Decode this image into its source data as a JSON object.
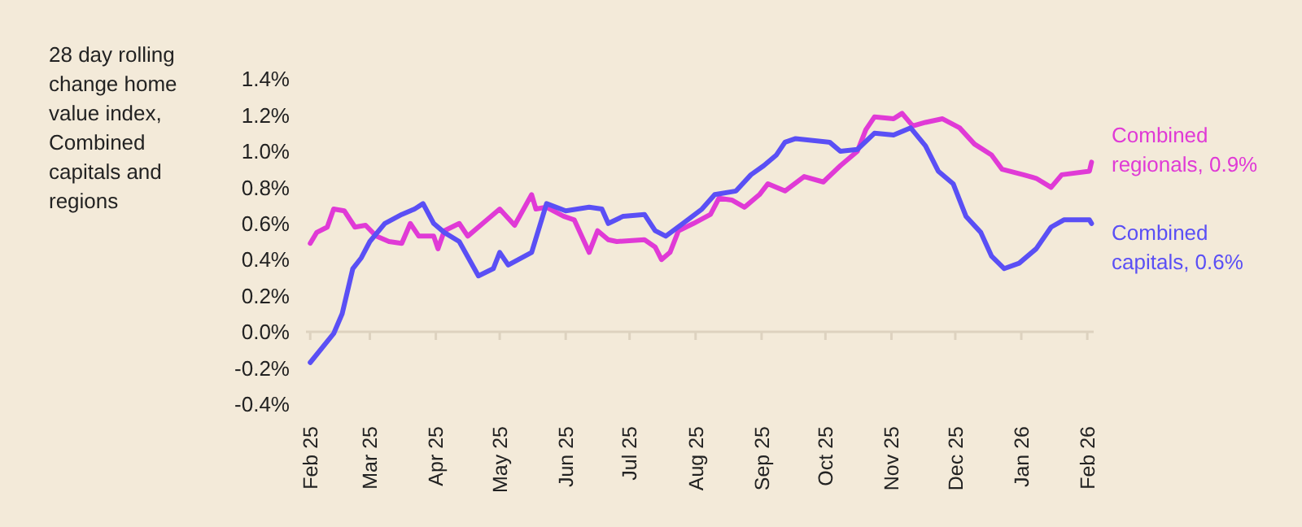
{
  "chart_data": {
    "type": "line",
    "title": "28 day rolling change home value index, Combined capitals and regions",
    "xlim": [
      "2025-01-30",
      "2026-02-04"
    ],
    "ylim": [
      -0.4,
      1.4
    ],
    "xticks": [
      {
        "value": "2025-02-01",
        "label": "Feb 25"
      },
      {
        "value": "2025-03-01",
        "label": "Mar 25"
      },
      {
        "value": "2025-04-01",
        "label": "Apr 25"
      },
      {
        "value": "2025-05-01",
        "label": "May 25"
      },
      {
        "value": "2025-06-01",
        "label": "Jun 25"
      },
      {
        "value": "2025-07-01",
        "label": "Jul 25"
      },
      {
        "value": "2025-08-01",
        "label": "Aug 25"
      },
      {
        "value": "2025-09-01",
        "label": "Sep 25"
      },
      {
        "value": "2025-10-01",
        "label": "Oct 25"
      },
      {
        "value": "2025-11-01",
        "label": "Nov 25"
      },
      {
        "value": "2025-12-01",
        "label": "Dec 25"
      },
      {
        "value": "2026-01-01",
        "label": "Jan 26"
      },
      {
        "value": "2026-02-01",
        "label": "Feb 26"
      }
    ],
    "yticks": [
      {
        "value": 1.4,
        "label": "1.4%"
      },
      {
        "value": 1.2,
        "label": "1.2%"
      },
      {
        "value": 1.0,
        "label": "1.0%"
      },
      {
        "value": 0.8,
        "label": "0.8%"
      },
      {
        "value": 0.6,
        "label": "0.6%"
      },
      {
        "value": 0.4,
        "label": "0.4%"
      },
      {
        "value": 0.2,
        "label": "0.2%"
      },
      {
        "value": 0.0,
        "label": "0.0%"
      },
      {
        "value": -0.2,
        "label": "-0.2%"
      },
      {
        "value": -0.4,
        "label": "-0.4%"
      }
    ],
    "marker": "none",
    "line_style": "solid",
    "series": [
      {
        "name": "Combined regionals, 0.9%",
        "color": "#e03ad6",
        "x": [
          "2025-02-01",
          "2025-02-04",
          "2025-02-09",
          "2025-02-12",
          "2025-02-17",
          "2025-02-22",
          "2025-02-27",
          "2025-03-04",
          "2025-03-10",
          "2025-03-16",
          "2025-03-20",
          "2025-03-24",
          "2025-03-31",
          "2025-04-02",
          "2025-04-05",
          "2025-04-12",
          "2025-04-16",
          "2025-04-23",
          "2025-05-01",
          "2025-05-08",
          "2025-05-16",
          "2025-05-18",
          "2025-05-23",
          "2025-05-31",
          "2025-06-05",
          "2025-06-12",
          "2025-06-16",
          "2025-06-21",
          "2025-06-25",
          "2025-07-08",
          "2025-07-13",
          "2025-07-16",
          "2025-07-20",
          "2025-07-24",
          "2025-07-31",
          "2025-08-08",
          "2025-08-12",
          "2025-08-18",
          "2025-08-24",
          "2025-08-31",
          "2025-09-04",
          "2025-09-12",
          "2025-09-21",
          "2025-09-30",
          "2025-10-08",
          "2025-10-16",
          "2025-10-20",
          "2025-10-24",
          "2025-11-02",
          "2025-11-06",
          "2025-11-11",
          "2025-11-17",
          "2025-11-25",
          "2025-12-03",
          "2025-12-10",
          "2025-12-18",
          "2025-12-23",
          "2026-01-02",
          "2026-01-08",
          "2026-01-15",
          "2026-01-20",
          "2026-02-02",
          "2026-02-03"
        ],
        "values": [
          0.49,
          0.55,
          0.58,
          0.68,
          0.67,
          0.58,
          0.59,
          0.53,
          0.5,
          0.49,
          0.6,
          0.53,
          0.53,
          0.46,
          0.56,
          0.6,
          0.53,
          0.6,
          0.68,
          0.59,
          0.76,
          0.68,
          0.69,
          0.64,
          0.62,
          0.44,
          0.56,
          0.51,
          0.5,
          0.51,
          0.47,
          0.4,
          0.44,
          0.56,
          0.6,
          0.65,
          0.74,
          0.73,
          0.69,
          0.76,
          0.82,
          0.78,
          0.86,
          0.83,
          0.92,
          1.0,
          1.12,
          1.19,
          1.18,
          1.21,
          1.14,
          1.16,
          1.18,
          1.13,
          1.04,
          0.98,
          0.9,
          0.87,
          0.85,
          0.8,
          0.87,
          0.89,
          0.94
        ]
      },
      {
        "name": "Combined capitals, 0.6%",
        "color": "#5a4ff5",
        "x": [
          "2025-02-01",
          "2025-02-12",
          "2025-02-16",
          "2025-02-21",
          "2025-02-25",
          "2025-03-01",
          "2025-03-08",
          "2025-03-16",
          "2025-03-22",
          "2025-03-26",
          "2025-03-31",
          "2025-04-05",
          "2025-04-12",
          "2025-04-21",
          "2025-04-28",
          "2025-05-01",
          "2025-05-05",
          "2025-05-16",
          "2025-05-23",
          "2025-06-01",
          "2025-06-12",
          "2025-06-18",
          "2025-06-21",
          "2025-06-28",
          "2025-07-08",
          "2025-07-13",
          "2025-07-18",
          "2025-07-26",
          "2025-08-04",
          "2025-08-10",
          "2025-08-20",
          "2025-08-27",
          "2025-09-02",
          "2025-09-08",
          "2025-09-12",
          "2025-09-17",
          "2025-10-03",
          "2025-10-08",
          "2025-10-16",
          "2025-10-24",
          "2025-11-02",
          "2025-11-10",
          "2025-11-17",
          "2025-11-23",
          "2025-11-30",
          "2025-12-06",
          "2025-12-13",
          "2025-12-18",
          "2025-12-24",
          "2025-12-31",
          "2026-01-08",
          "2026-01-15",
          "2026-01-21",
          "2026-02-02",
          "2026-02-03"
        ],
        "values": [
          -0.17,
          -0.01,
          0.1,
          0.35,
          0.41,
          0.5,
          0.6,
          0.65,
          0.68,
          0.71,
          0.6,
          0.55,
          0.5,
          0.31,
          0.35,
          0.44,
          0.37,
          0.44,
          0.71,
          0.67,
          0.69,
          0.68,
          0.6,
          0.64,
          0.65,
          0.56,
          0.53,
          0.6,
          0.68,
          0.76,
          0.78,
          0.87,
          0.92,
          0.98,
          1.05,
          1.07,
          1.05,
          1.0,
          1.01,
          1.1,
          1.09,
          1.13,
          1.03,
          0.89,
          0.82,
          0.64,
          0.55,
          0.42,
          0.35,
          0.38,
          0.46,
          0.58,
          0.62,
          0.62,
          0.6
        ]
      }
    ]
  }
}
